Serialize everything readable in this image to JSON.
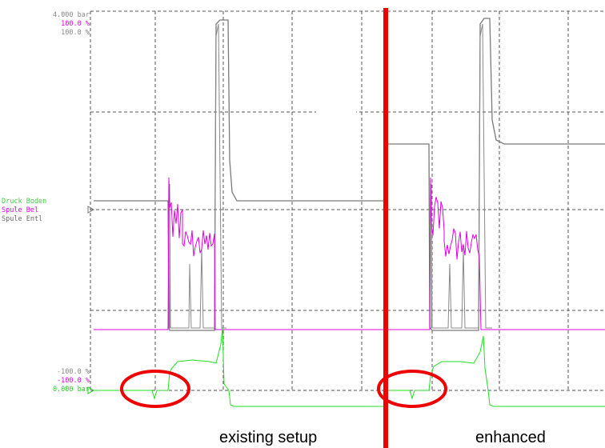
{
  "colors": {
    "druck": "#7a7a7a",
    "bel": "#e000e0",
    "entl": "#8a8a8a",
    "valve": "#22dd22",
    "marker": "#ee0000",
    "grid": "#555555",
    "legend_druck": "#44cc44",
    "legend_bel": "#dd00dd",
    "legend_entl": "#666666"
  },
  "scale_top": {
    "line1": "4.000  bar",
    "line2": "100.0  %",
    "line3": "100.0  %"
  },
  "scale_bottom": {
    "line1": "-100.0  %",
    "line2": "-100.0  %",
    "line3": "0.000  bar"
  },
  "legend": {
    "druck": "Druck Boden",
    "bel": "Spule Bel",
    "entl": "Spule Entl"
  },
  "captions": {
    "left": "existing setup",
    "right": "enhanced"
  },
  "chart_data": {
    "type": "line",
    "title": "",
    "xlabel": "",
    "ylabel": "",
    "ylim_pressure_bar": [
      0,
      4
    ],
    "ylim_valve_percent": [
      -100,
      100
    ],
    "grid": "dashed",
    "note_marks": "Red vertical divider separates two recordings; red ellipses mark pressure dips at valve switch-on.",
    "series": [
      {
        "name": "Druck Boden",
        "unit": "bar",
        "segments": [
          "existing setup",
          "enhanced"
        ]
      },
      {
        "name": "Spule Bel",
        "unit": "%",
        "segments": [
          "existing setup",
          "enhanced"
        ]
      },
      {
        "name": "Spule Entl",
        "unit": "%",
        "segments": [
          "existing setup",
          "enhanced"
        ]
      }
    ]
  }
}
